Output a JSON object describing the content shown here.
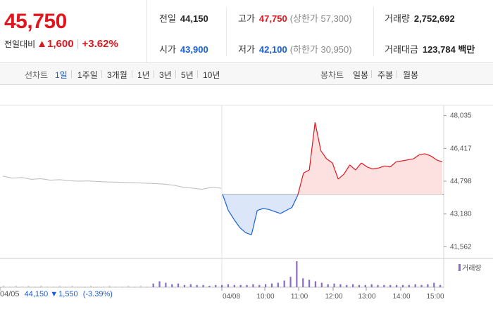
{
  "header": {
    "price": "45,750",
    "change_label": "전일대비",
    "change_arrow": "▲",
    "change_value": "1,600",
    "change_pct": "+3.62%",
    "stats": {
      "prev_close": {
        "label": "전일",
        "value": "44,150"
      },
      "high": {
        "label": "고가",
        "value": "47,750",
        "extra": "(상한가 57,300)"
      },
      "volume": {
        "label": "거래량",
        "value": "2,752,692"
      },
      "open": {
        "label": "시가",
        "value": "43,900"
      },
      "low": {
        "label": "저가",
        "value": "42,100",
        "extra": "(하한가 30,950)"
      },
      "amount": {
        "label": "거래대금",
        "value": "123,784 백만"
      }
    }
  },
  "tabs": {
    "line_label": "선차트",
    "line_items": [
      "1일",
      "1주일",
      "3개월",
      "1년",
      "3년",
      "5년",
      "10년"
    ],
    "candle_label": "봉차트",
    "candle_items": [
      "일봉",
      "주봉",
      "월봉"
    ],
    "active": "1일"
  },
  "footer": {
    "date": "04/05",
    "price": "44,150",
    "arrow": "▼",
    "change": "1,550",
    "pct": "(-3.39%)"
  },
  "volume_legend": "거래량",
  "colors": {
    "up": "#e0171e",
    "down": "#1a5fd6",
    "prev_day": "#bbbbbb",
    "volume": "#8a6bc9"
  },
  "chart_data": {
    "type": "line",
    "y_ticks": [
      "48,035",
      "46,417",
      "44,798",
      "43,180",
      "41,562"
    ],
    "y_tick_values": [
      48035,
      46417,
      44798,
      43180,
      41562
    ],
    "ylim": [
      41400,
      48300
    ],
    "x_ticks": [
      "04/05",
      "04/08",
      "10:00",
      "11:00",
      "12:00",
      "13:00",
      "14:00",
      "15:00"
    ],
    "baseline": 44150,
    "series": [
      {
        "key": "previous_day",
        "values": [
          45050,
          44950,
          44980,
          44890,
          44920,
          44850,
          44870,
          44820,
          44800,
          44810,
          44780,
          44760,
          44750,
          44730,
          44720,
          44700,
          44680,
          44650,
          44600,
          44500,
          44450,
          44400,
          44500,
          44450
        ]
      },
      {
        "key": "today",
        "x": [
          "09:00",
          "09:10",
          "09:20",
          "09:30",
          "09:40",
          "09:50",
          "10:00",
          "10:10",
          "10:20",
          "10:30",
          "10:40",
          "10:50",
          "11:00",
          "11:10",
          "11:20",
          "11:30",
          "11:40",
          "11:50",
          "12:00",
          "12:10",
          "12:20",
          "12:30",
          "12:40",
          "12:50",
          "13:00",
          "13:10",
          "13:20",
          "13:30",
          "13:40",
          "13:50",
          "14:00",
          "14:10",
          "14:20",
          "14:30",
          "14:40",
          "14:50",
          "15:00",
          "15:10",
          "15:20"
        ],
        "values": [
          44150,
          43350,
          42900,
          42500,
          42250,
          42150,
          43350,
          43450,
          43400,
          43300,
          43200,
          43350,
          43500,
          44100,
          45200,
          45350,
          47700,
          46300,
          45900,
          45700,
          44900,
          45150,
          45600,
          45350,
          45700,
          45500,
          45400,
          45450,
          45550,
          45500,
          45750,
          45800,
          45850,
          45900,
          46100,
          46150,
          46050,
          45850,
          45750
        ]
      }
    ],
    "volume": {
      "name": "거래량",
      "values": [
        2,
        1,
        2,
        1,
        2,
        1,
        2,
        1,
        1,
        2,
        1,
        2,
        1,
        1,
        2,
        1,
        1,
        2,
        1,
        1,
        2,
        1,
        2,
        1,
        5,
        8,
        6,
        4,
        5,
        3,
        4,
        3,
        3,
        2,
        3,
        3,
        4,
        3,
        3,
        3,
        4,
        3,
        4,
        5,
        6,
        9,
        14,
        35,
        12,
        10,
        8,
        6,
        4,
        5,
        4,
        3,
        4,
        3,
        3,
        4,
        3,
        3,
        3,
        3,
        3,
        3,
        4,
        3,
        4,
        6,
        3
      ]
    }
  }
}
